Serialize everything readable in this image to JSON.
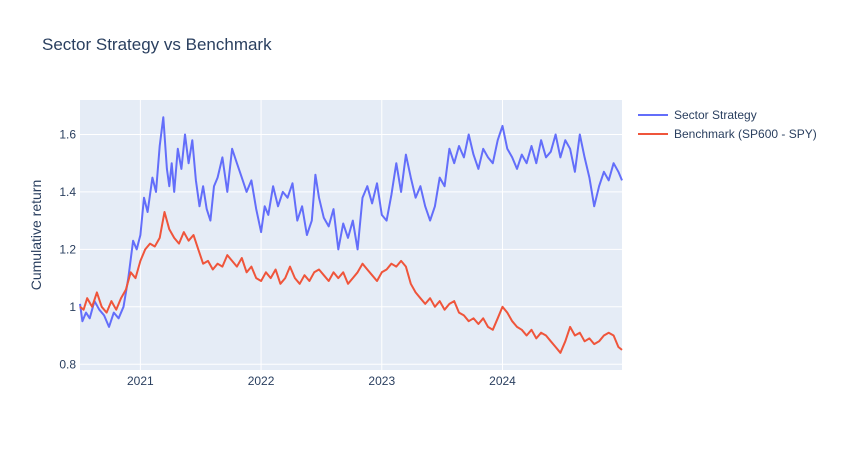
{
  "chart_data": {
    "type": "line",
    "title": "Sector Strategy vs Benchmark",
    "xlabel": "",
    "ylabel": "Cumulative return",
    "xlim": [
      2020.5,
      2024.99
    ],
    "ylim": [
      0.78,
      1.72
    ],
    "x_ticks": [
      2021,
      2022,
      2023,
      2024
    ],
    "x_tick_labels": [
      "2021",
      "2022",
      "2023",
      "2024"
    ],
    "y_ticks": [
      0.8,
      1,
      1.2,
      1.4,
      1.6
    ],
    "y_tick_labels": [
      "0.8",
      "1",
      "1.2",
      "1.4",
      "1.6"
    ],
    "grid": true,
    "legend_position": "top-right, outside plot",
    "background": "#e5ecf6",
    "series": [
      {
        "name": "Sector Strategy",
        "color": "#636efa",
        "x": [
          2020.5,
          2020.52,
          2020.55,
          2020.58,
          2020.62,
          2020.66,
          2020.7,
          2020.74,
          2020.78,
          2020.82,
          2020.86,
          2020.9,
          2020.94,
          2020.97,
          2021.0,
          2021.03,
          2021.06,
          2021.1,
          2021.13,
          2021.16,
          2021.19,
          2021.22,
          2021.24,
          2021.26,
          2021.28,
          2021.31,
          2021.34,
          2021.37,
          2021.4,
          2021.43,
          2021.46,
          2021.49,
          2021.52,
          2021.55,
          2021.58,
          2021.61,
          2021.64,
          2021.68,
          2021.72,
          2021.76,
          2021.8,
          2021.84,
          2021.88,
          2021.92,
          2021.96,
          2022.0,
          2022.03,
          2022.06,
          2022.1,
          2022.14,
          2022.18,
          2022.22,
          2022.26,
          2022.3,
          2022.34,
          2022.38,
          2022.42,
          2022.45,
          2022.48,
          2022.52,
          2022.56,
          2022.6,
          2022.64,
          2022.68,
          2022.72,
          2022.76,
          2022.8,
          2022.84,
          2022.88,
          2022.92,
          2022.96,
          2023.0,
          2023.04,
          2023.08,
          2023.12,
          2023.16,
          2023.2,
          2023.24,
          2023.28,
          2023.32,
          2023.36,
          2023.4,
          2023.44,
          2023.48,
          2023.52,
          2023.56,
          2023.6,
          2023.64,
          2023.68,
          2023.72,
          2023.76,
          2023.8,
          2023.84,
          2023.88,
          2023.92,
          2023.96,
          2024.0,
          2024.04,
          2024.08,
          2024.12,
          2024.16,
          2024.2,
          2024.24,
          2024.28,
          2024.32,
          2024.36,
          2024.4,
          2024.44,
          2024.48,
          2024.52,
          2024.56,
          2024.6,
          2024.64,
          2024.68,
          2024.72,
          2024.76,
          2024.8,
          2024.84,
          2024.88,
          2024.92,
          2024.96,
          2024.99
        ],
        "values": [
          1.01,
          0.95,
          0.98,
          0.96,
          1.02,
          0.99,
          0.97,
          0.93,
          0.98,
          0.96,
          1.0,
          1.1,
          1.23,
          1.2,
          1.25,
          1.38,
          1.33,
          1.45,
          1.4,
          1.56,
          1.66,
          1.48,
          1.42,
          1.5,
          1.4,
          1.55,
          1.48,
          1.6,
          1.5,
          1.58,
          1.44,
          1.35,
          1.42,
          1.34,
          1.3,
          1.42,
          1.45,
          1.52,
          1.4,
          1.55,
          1.5,
          1.45,
          1.4,
          1.44,
          1.34,
          1.26,
          1.35,
          1.32,
          1.42,
          1.35,
          1.4,
          1.38,
          1.43,
          1.3,
          1.35,
          1.25,
          1.3,
          1.46,
          1.38,
          1.31,
          1.28,
          1.34,
          1.2,
          1.29,
          1.24,
          1.3,
          1.2,
          1.38,
          1.42,
          1.36,
          1.43,
          1.32,
          1.3,
          1.39,
          1.5,
          1.4,
          1.53,
          1.45,
          1.38,
          1.42,
          1.35,
          1.3,
          1.35,
          1.45,
          1.42,
          1.55,
          1.5,
          1.56,
          1.52,
          1.6,
          1.53,
          1.48,
          1.55,
          1.52,
          1.5,
          1.58,
          1.63,
          1.55,
          1.52,
          1.48,
          1.53,
          1.5,
          1.56,
          1.5,
          1.58,
          1.52,
          1.54,
          1.6,
          1.52,
          1.58,
          1.55,
          1.47,
          1.6,
          1.52,
          1.45,
          1.35,
          1.42,
          1.47,
          1.44,
          1.5,
          1.47,
          1.44
        ]
      },
      {
        "name": "Benchmark (SP600 - SPY)",
        "color": "#ef553b",
        "x": [
          2020.5,
          2020.53,
          2020.56,
          2020.6,
          2020.64,
          2020.68,
          2020.72,
          2020.76,
          2020.8,
          2020.84,
          2020.88,
          2020.92,
          2020.96,
          2021.0,
          2021.04,
          2021.08,
          2021.12,
          2021.16,
          2021.2,
          2021.24,
          2021.28,
          2021.32,
          2021.36,
          2021.4,
          2021.44,
          2021.48,
          2021.52,
          2021.56,
          2021.6,
          2021.64,
          2021.68,
          2021.72,
          2021.76,
          2021.8,
          2021.84,
          2021.88,
          2021.92,
          2021.96,
          2022.0,
          2022.04,
          2022.08,
          2022.12,
          2022.16,
          2022.2,
          2022.24,
          2022.28,
          2022.32,
          2022.36,
          2022.4,
          2022.44,
          2022.48,
          2022.52,
          2022.56,
          2022.6,
          2022.64,
          2022.68,
          2022.72,
          2022.76,
          2022.8,
          2022.84,
          2022.88,
          2022.92,
          2022.96,
          2023.0,
          2023.04,
          2023.08,
          2023.12,
          2023.16,
          2023.2,
          2023.24,
          2023.28,
          2023.32,
          2023.36,
          2023.4,
          2023.44,
          2023.48,
          2023.52,
          2023.56,
          2023.6,
          2023.64,
          2023.68,
          2023.72,
          2023.76,
          2023.8,
          2023.84,
          2023.88,
          2023.92,
          2023.96,
          2024.0,
          2024.04,
          2024.08,
          2024.12,
          2024.16,
          2024.2,
          2024.24,
          2024.28,
          2024.32,
          2024.36,
          2024.4,
          2024.44,
          2024.48,
          2024.52,
          2024.56,
          2024.6,
          2024.64,
          2024.68,
          2024.72,
          2024.76,
          2024.8,
          2024.84,
          2024.88,
          2024.92,
          2024.96,
          2024.99
        ],
        "values": [
          1.0,
          0.99,
          1.03,
          1.0,
          1.05,
          1.0,
          0.98,
          1.02,
          0.99,
          1.03,
          1.06,
          1.12,
          1.1,
          1.16,
          1.2,
          1.22,
          1.21,
          1.24,
          1.33,
          1.27,
          1.24,
          1.22,
          1.26,
          1.23,
          1.25,
          1.2,
          1.15,
          1.16,
          1.13,
          1.15,
          1.14,
          1.18,
          1.16,
          1.14,
          1.17,
          1.12,
          1.14,
          1.1,
          1.09,
          1.12,
          1.1,
          1.13,
          1.08,
          1.1,
          1.14,
          1.1,
          1.08,
          1.11,
          1.09,
          1.12,
          1.13,
          1.11,
          1.09,
          1.12,
          1.1,
          1.12,
          1.08,
          1.1,
          1.12,
          1.15,
          1.13,
          1.11,
          1.09,
          1.12,
          1.13,
          1.15,
          1.14,
          1.16,
          1.14,
          1.08,
          1.05,
          1.03,
          1.01,
          1.03,
          1.0,
          1.02,
          0.99,
          1.01,
          1.02,
          0.98,
          0.97,
          0.95,
          0.96,
          0.94,
          0.96,
          0.93,
          0.92,
          0.96,
          1.0,
          0.98,
          0.95,
          0.93,
          0.92,
          0.9,
          0.92,
          0.89,
          0.91,
          0.9,
          0.88,
          0.86,
          0.84,
          0.88,
          0.93,
          0.9,
          0.91,
          0.88,
          0.89,
          0.87,
          0.88,
          0.9,
          0.91,
          0.9,
          0.86,
          0.85
        ]
      }
    ]
  }
}
